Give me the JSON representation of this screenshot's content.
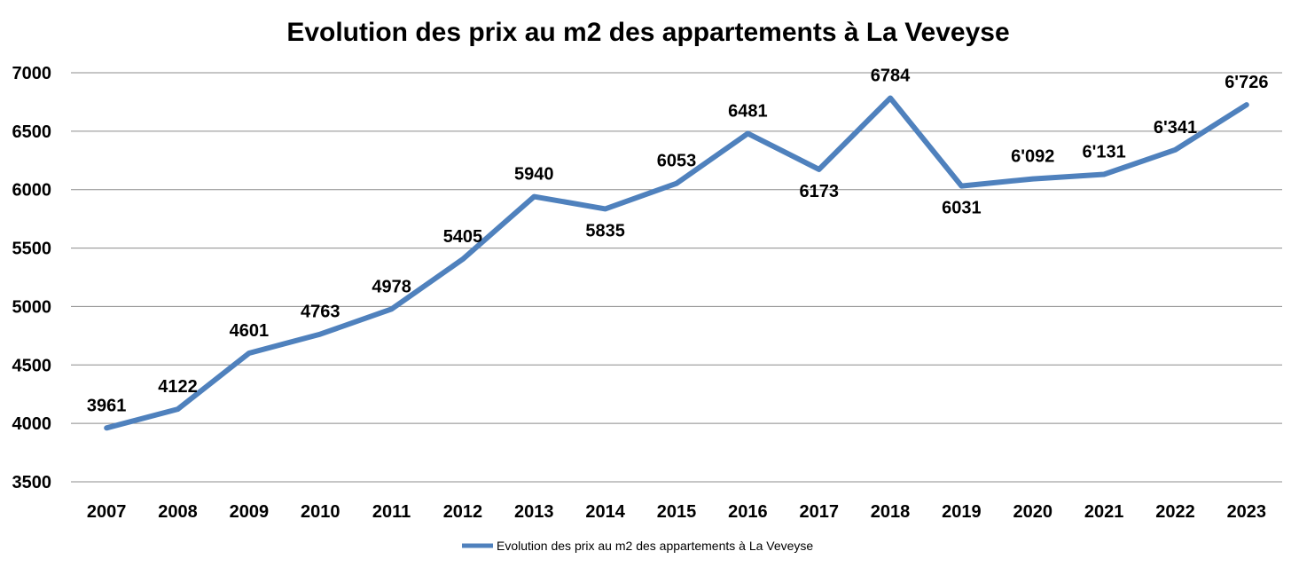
{
  "chart_data": {
    "type": "line",
    "title": "Evolution des prix au m2 des appartements à La Veveyse",
    "xlabel": "",
    "ylabel": "",
    "ylim": [
      3500,
      7000
    ],
    "yticks": [
      "7000",
      "6500",
      "6000",
      "5500",
      "5000",
      "4500",
      "4000",
      "3500"
    ],
    "grid": true,
    "legend_position": "bottom",
    "color": "#4f81bd",
    "categories": [
      "2007",
      "2008",
      "2009",
      "2010",
      "2011",
      "2012",
      "2013",
      "2014",
      "2015",
      "2016",
      "2017",
      "2018",
      "2019",
      "2020",
      "2021",
      "2022",
      "2023"
    ],
    "series": [
      {
        "name": "Evolution des prix au m2 des appartements à La Veveyse",
        "values": [
          3961,
          4122,
          4601,
          4763,
          4978,
          5405,
          5940,
          5835,
          6053,
          6481,
          6173,
          6784,
          6031,
          6092,
          6131,
          6341,
          6726
        ],
        "labels": [
          "3961",
          "4122",
          "4601",
          "4763",
          "4978",
          "5405",
          "5940",
          "5835",
          "6053",
          "6481",
          "6173",
          "6784",
          "6031",
          "6'092",
          "6'131",
          "6'341",
          "6'726"
        ],
        "label_position": [
          "above",
          "above",
          "above",
          "above",
          "above",
          "above",
          "above",
          "below",
          "above",
          "above",
          "below",
          "above",
          "below",
          "above",
          "above",
          "above",
          "above"
        ]
      }
    ]
  }
}
